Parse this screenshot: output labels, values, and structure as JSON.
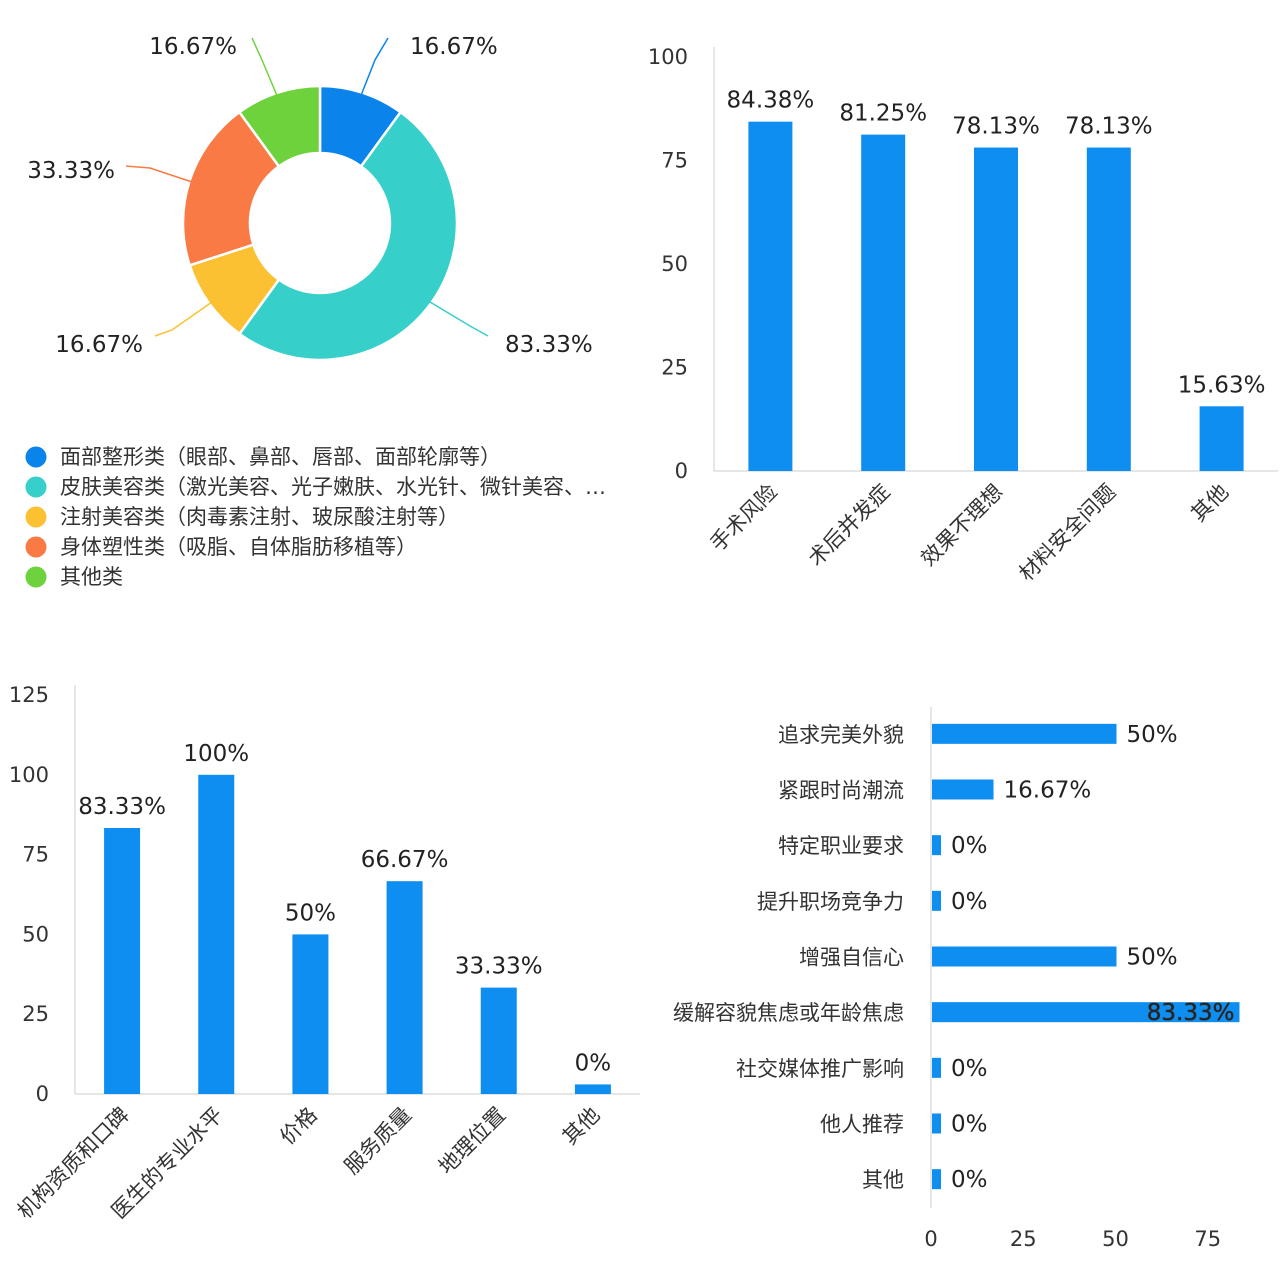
{
  "chart_data": [
    {
      "type": "pie",
      "variant": "donut",
      "title": "",
      "categories": [
        "面部整形类（眼部、鼻部、唇部、面部轮廓等）",
        "皮肤美容类（激光美容、光子嫩肤、水光针、微针美容、…",
        "注射美容类（肉毒素注射、玻尿酸注射等）",
        "身体塑性类（吸脂、自体脂肪移植等）",
        "其他类"
      ],
      "values": [
        16.67,
        83.33,
        16.67,
        33.33,
        16.67
      ],
      "labels": [
        "16.67%",
        "83.33%",
        "16.67%",
        "33.33%",
        "16.67%"
      ],
      "colors": [
        "#0a84ea",
        "#36cfc9",
        "#fbc132",
        "#fa7a45",
        "#6dd23c"
      ],
      "legend_position": "bottom-left"
    },
    {
      "type": "bar",
      "orientation": "vertical",
      "title": "",
      "xlabel": "",
      "ylabel": "",
      "categories": [
        "手术风险",
        "术后并发症",
        "效果不理想",
        "材料安全问题",
        "其他"
      ],
      "values": [
        84.38,
        81.25,
        78.13,
        78.13,
        15.63
      ],
      "labels": [
        "84.38%",
        "81.25%",
        "78.13%",
        "78.13%",
        "15.63%"
      ],
      "ylim": [
        0,
        100
      ],
      "yticks": [
        "0",
        "25",
        "50",
        "75",
        "100"
      ],
      "color": "#0d8ef0",
      "grid": false
    },
    {
      "type": "bar",
      "orientation": "vertical",
      "title": "",
      "xlabel": "",
      "ylabel": "",
      "categories": [
        "机构资质和口碑",
        "医生的专业水平",
        "价格",
        "服务质量",
        "地理位置",
        "其他"
      ],
      "values": [
        83.33,
        100,
        50,
        66.67,
        33.33,
        0
      ],
      "labels": [
        "83.33%",
        "100%",
        "50%",
        "66.67%",
        "33.33%",
        "0%"
      ],
      "ylim": [
        0,
        125
      ],
      "yticks": [
        "0",
        "25",
        "50",
        "75",
        "100",
        "125"
      ],
      "color": "#0d8ef0",
      "grid": false
    },
    {
      "type": "bar",
      "orientation": "horizontal",
      "title": "",
      "xlabel": "",
      "ylabel": "",
      "categories": [
        "追求完美外貌",
        "紧跟时尚潮流",
        "特定职业要求",
        "提升职场竞争力",
        "增强自信心",
        "缓解容貌焦虑或年龄焦虑",
        "社交媒体推广影响",
        "他人推荐",
        "其他"
      ],
      "values": [
        50,
        16.67,
        0,
        0,
        50,
        83.33,
        0,
        0,
        0
      ],
      "labels": [
        "50%",
        "16.67%",
        "0%",
        "0%",
        "50%",
        "83.33%",
        "0%",
        "0%",
        "0%"
      ],
      "xlim": [
        0,
        100
      ],
      "xticks": [
        "0",
        "25",
        "50",
        "75",
        "100"
      ],
      "color": "#0d8ef0",
      "grid": false
    }
  ]
}
